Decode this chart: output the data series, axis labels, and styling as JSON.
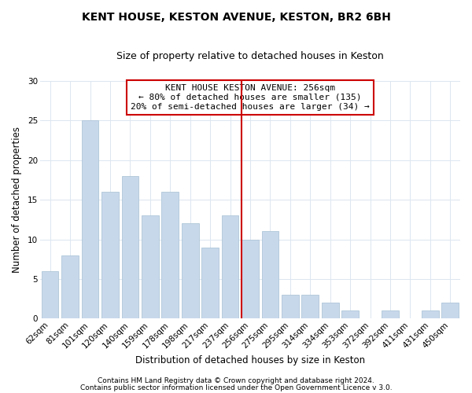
{
  "title": "KENT HOUSE, KESTON AVENUE, KESTON, BR2 6BH",
  "subtitle": "Size of property relative to detached houses in Keston",
  "xlabel": "Distribution of detached houses by size in Keston",
  "ylabel": "Number of detached properties",
  "categories": [
    "62sqm",
    "81sqm",
    "101sqm",
    "120sqm",
    "140sqm",
    "159sqm",
    "178sqm",
    "198sqm",
    "217sqm",
    "237sqm",
    "256sqm",
    "275sqm",
    "295sqm",
    "314sqm",
    "334sqm",
    "353sqm",
    "372sqm",
    "392sqm",
    "411sqm",
    "431sqm",
    "450sqm"
  ],
  "values": [
    6,
    8,
    25,
    16,
    18,
    13,
    16,
    12,
    9,
    13,
    10,
    11,
    3,
    3,
    2,
    1,
    0,
    1,
    0,
    1,
    2
  ],
  "bar_color": "#c8d8eb",
  "bar_edge_color": "#aec6d8",
  "highlight_index": 10,
  "highlight_line_color": "#cc0000",
  "annotation_line1": "KENT HOUSE KESTON AVENUE: 256sqm",
  "annotation_line2": "← 80% of detached houses are smaller (135)",
  "annotation_line3": "20% of semi-detached houses are larger (34) →",
  "annotation_box_color": "#ffffff",
  "annotation_box_edge_color": "#cc0000",
  "ylim": [
    0,
    30
  ],
  "yticks": [
    0,
    5,
    10,
    15,
    20,
    25,
    30
  ],
  "footer_line1": "Contains HM Land Registry data © Crown copyright and database right 2024.",
  "footer_line2": "Contains public sector information licensed under the Open Government Licence v 3.0.",
  "background_color": "#ffffff",
  "grid_color": "#dce6f0",
  "title_fontsize": 10,
  "subtitle_fontsize": 9,
  "axis_label_fontsize": 8.5,
  "tick_fontsize": 7.5,
  "annotation_fontsize": 8,
  "footer_fontsize": 6.5
}
